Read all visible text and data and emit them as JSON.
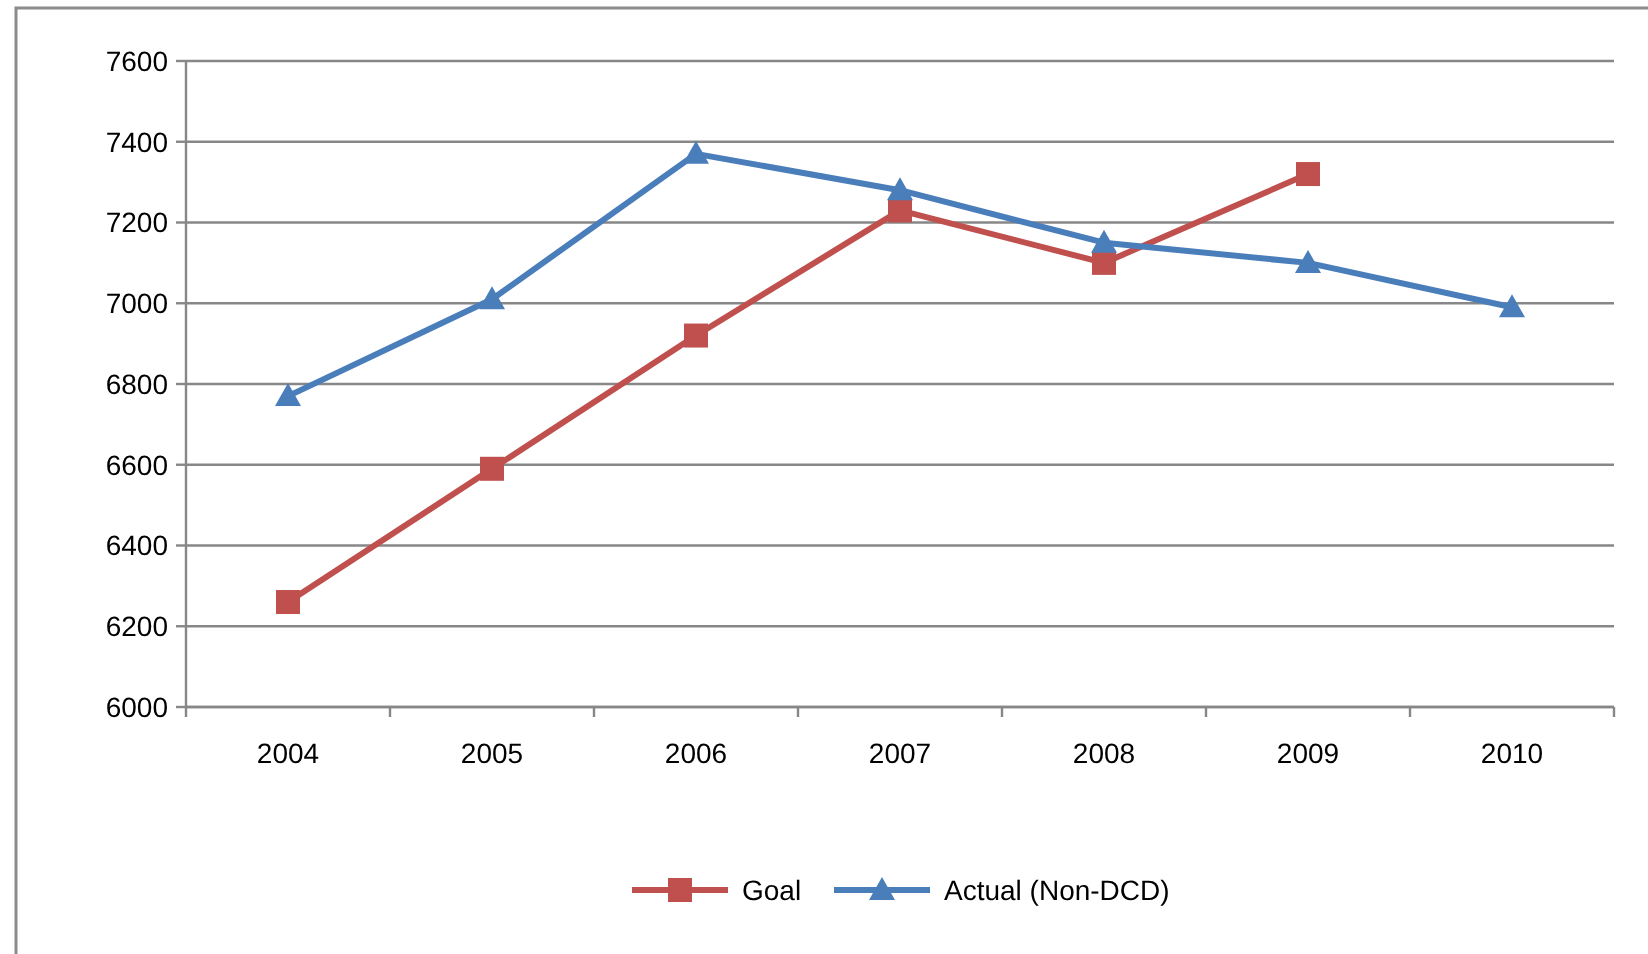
{
  "chart_data": {
    "type": "line",
    "categories": [
      "2004",
      "2005",
      "2006",
      "2007",
      "2008",
      "2009",
      "2010"
    ],
    "series": [
      {
        "name": "Goal",
        "color": "#c0504d",
        "marker": "square",
        "values": [
          6260,
          6590,
          6920,
          7230,
          7100,
          7320,
          null
        ]
      },
      {
        "name": "Actual (Non-DCD)",
        "color": "#4a7ebb",
        "marker": "triangle",
        "values": [
          6770,
          7010,
          7370,
          7280,
          7150,
          7100,
          6990
        ]
      }
    ],
    "ylim": [
      6000,
      7600
    ],
    "yticks": [
      6000,
      6200,
      6400,
      6600,
      6800,
      7000,
      7200,
      7400,
      7600
    ],
    "grid": "y",
    "legend": "bottom",
    "line_style": "solid"
  }
}
